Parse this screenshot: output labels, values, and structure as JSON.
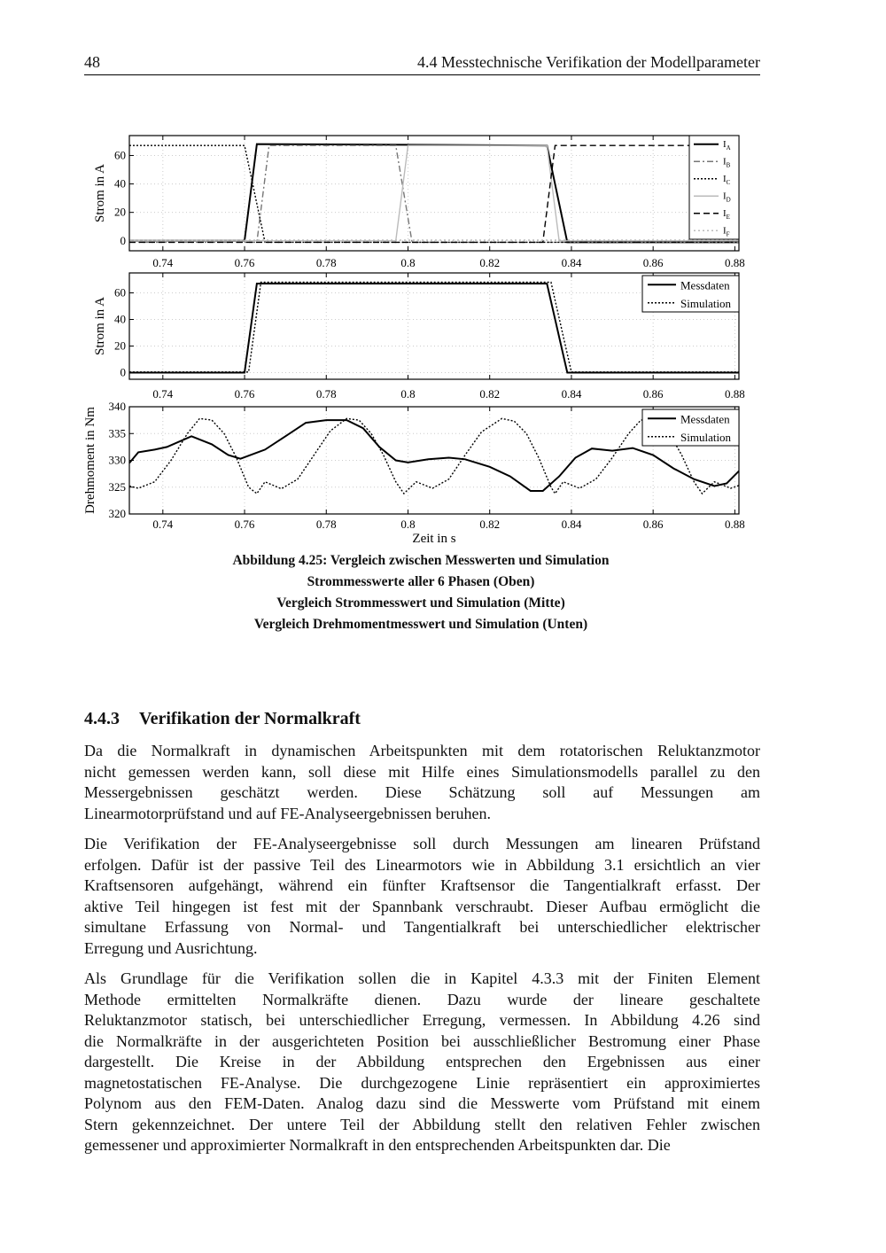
{
  "header": {
    "page_number": "48",
    "section_title": "4.4 Messtechnische Verifikation der Modellparameter"
  },
  "figure": {
    "caption": [
      "Abbildung 4.25: Vergleich zwischen Messwerten und Simulation",
      "Strommesswerte aller 6 Phasen (Oben)",
      "Vergleich Strommesswert und Simulation (Mitte)",
      "Vergleich Drehmomentmesswert und Simulation (Unten)"
    ]
  },
  "chart_data": [
    {
      "type": "line",
      "xlabel": "",
      "ylabel": "Strom in A",
      "xlim": [
        0.7318,
        0.881
      ],
      "ylim": [
        -7,
        74
      ],
      "xticks": [
        "0.74",
        "0.76",
        "0.78",
        "0.8",
        "0.82",
        "0.84",
        "0.86",
        "0.88"
      ],
      "xtick_values": [
        0.74,
        0.76,
        0.78,
        0.8,
        0.82,
        0.84,
        0.86,
        0.88
      ],
      "yticks": [
        0,
        20,
        40,
        60
      ],
      "grid": true,
      "legend": "top-right",
      "series": [
        {
          "name": "I",
          "sub": "A",
          "style": "solid",
          "color": "#000000",
          "points": [
            [
              0.7318,
              0
            ],
            [
              0.76,
              0
            ],
            [
              0.763,
              68
            ],
            [
              0.834,
              67
            ],
            [
              0.839,
              -1
            ],
            [
              0.881,
              -1
            ]
          ]
        },
        {
          "name": "I",
          "sub": "B",
          "style": "dashdot",
          "color": "#777777",
          "points": [
            [
              0.7318,
              -1
            ],
            [
              0.763,
              -1
            ],
            [
              0.766,
              67
            ],
            [
              0.797,
              67
            ],
            [
              0.801,
              -1
            ],
            [
              0.881,
              -1
            ]
          ]
        },
        {
          "name": "I",
          "sub": "C",
          "style": "dotted",
          "color": "#000000",
          "points": [
            [
              0.7318,
              67
            ],
            [
              0.76,
              67
            ],
            [
              0.765,
              -1
            ],
            [
              0.881,
              -1
            ]
          ]
        },
        {
          "name": "I",
          "sub": "D",
          "style": "solid-light",
          "color": "#bbbbbb",
          "points": [
            [
              0.7318,
              0
            ],
            [
              0.797,
              0
            ],
            [
              0.8,
              67
            ],
            [
              0.834,
              67
            ],
            [
              0.837,
              0
            ],
            [
              0.881,
              0
            ]
          ]
        },
        {
          "name": "I",
          "sub": "E",
          "style": "dashed",
          "color": "#000000",
          "points": [
            [
              0.7318,
              -1
            ],
            [
              0.833,
              -1
            ],
            [
              0.836,
              67
            ],
            [
              0.881,
              67
            ]
          ]
        },
        {
          "name": "I",
          "sub": "F",
          "style": "dotted-light",
          "color": "#bbbbbb",
          "points": [
            [
              0.7318,
              0.5
            ],
            [
              0.881,
              0.5
            ]
          ]
        }
      ]
    },
    {
      "type": "line",
      "xlabel": "",
      "ylabel": "Strom in A",
      "xlim": [
        0.7318,
        0.881
      ],
      "ylim": [
        -5,
        75
      ],
      "xticks": [
        "0.74",
        "0.76",
        "0.78",
        "0.8",
        "0.82",
        "0.84",
        "0.86",
        "0.88"
      ],
      "xtick_values": [
        0.74,
        0.76,
        0.78,
        0.8,
        0.82,
        0.84,
        0.86,
        0.88
      ],
      "yticks": [
        0,
        20,
        40,
        60
      ],
      "grid": true,
      "legend": "top-right",
      "series": [
        {
          "name": "Messdaten",
          "style": "solid",
          "color": "#000000",
          "points": [
            [
              0.7318,
              0
            ],
            [
              0.76,
              0
            ],
            [
              0.763,
              67
            ],
            [
              0.834,
              67
            ],
            [
              0.839,
              0
            ],
            [
              0.881,
              0
            ]
          ]
        },
        {
          "name": "Simulation",
          "style": "dotted",
          "color": "#000000",
          "points": [
            [
              0.7318,
              0.5
            ],
            [
              0.761,
              0.5
            ],
            [
              0.764,
              68
            ],
            [
              0.835,
              68
            ],
            [
              0.84,
              0.5
            ],
            [
              0.881,
              0.5
            ]
          ]
        }
      ]
    },
    {
      "type": "line",
      "xlabel": "Zeit in s",
      "ylabel": "Drehmoment in Nm",
      "xlim": [
        0.7318,
        0.881
      ],
      "ylim": [
        320,
        340
      ],
      "xticks": [
        "0.74",
        "0.76",
        "0.78",
        "0.8",
        "0.82",
        "0.84",
        "0.86",
        "0.88"
      ],
      "xtick_values": [
        0.74,
        0.76,
        0.78,
        0.8,
        0.82,
        0.84,
        0.86,
        0.88
      ],
      "yticks": [
        320,
        325,
        330,
        335,
        340
      ],
      "grid": true,
      "legend": "top-right",
      "series": [
        {
          "name": "Messdaten",
          "style": "solid",
          "color": "#000000",
          "points": [
            [
              0.7318,
              329.5
            ],
            [
              0.734,
              331.5
            ],
            [
              0.738,
              332
            ],
            [
              0.741,
              332.5
            ],
            [
              0.747,
              334.5
            ],
            [
              0.752,
              333
            ],
            [
              0.756,
              331
            ],
            [
              0.759,
              330.3
            ],
            [
              0.765,
              332
            ],
            [
              0.77,
              334.5
            ],
            [
              0.775,
              337
            ],
            [
              0.78,
              337.5
            ],
            [
              0.785,
              337.5
            ],
            [
              0.789,
              336
            ],
            [
              0.793,
              332.5
            ],
            [
              0.797,
              330
            ],
            [
              0.8,
              329.6
            ],
            [
              0.805,
              330.2
            ],
            [
              0.81,
              330.5
            ],
            [
              0.814,
              330.2
            ],
            [
              0.82,
              328.8
            ],
            [
              0.825,
              327
            ],
            [
              0.83,
              324.3
            ],
            [
              0.833,
              324.3
            ],
            [
              0.837,
              327
            ],
            [
              0.841,
              330.5
            ],
            [
              0.845,
              332.2
            ],
            [
              0.85,
              331.8
            ],
            [
              0.855,
              332.3
            ],
            [
              0.86,
              331
            ],
            [
              0.865,
              328.5
            ],
            [
              0.87,
              326.5
            ],
            [
              0.875,
              325.2
            ],
            [
              0.878,
              325.7
            ],
            [
              0.881,
              328
            ]
          ]
        },
        {
          "name": "Simulation",
          "style": "dotted",
          "color": "#000000",
          "points": [
            [
              0.7318,
              325.2
            ],
            [
              0.734,
              324.8
            ],
            [
              0.738,
              326
            ],
            [
              0.742,
              330
            ],
            [
              0.746,
              335
            ],
            [
              0.749,
              337.8
            ],
            [
              0.752,
              337.5
            ],
            [
              0.755,
              335
            ],
            [
              0.758,
              330.5
            ],
            [
              0.761,
              325
            ],
            [
              0.763,
              323.8
            ],
            [
              0.765,
              326
            ],
            [
              0.769,
              324.7
            ],
            [
              0.773,
              326.5
            ],
            [
              0.777,
              331
            ],
            [
              0.781,
              335.5
            ],
            [
              0.785,
              337.8
            ],
            [
              0.788,
              337.5
            ],
            [
              0.791,
              335
            ],
            [
              0.794,
              331
            ],
            [
              0.797,
              326
            ],
            [
              0.799,
              323.8
            ],
            [
              0.802,
              326
            ],
            [
              0.806,
              324.8
            ],
            [
              0.81,
              326.5
            ],
            [
              0.814,
              331
            ],
            [
              0.818,
              335.3
            ],
            [
              0.823,
              337.8
            ],
            [
              0.826,
              337.3
            ],
            [
              0.829,
              335
            ],
            [
              0.832,
              330.5
            ],
            [
              0.835,
              325
            ],
            [
              0.836,
              323.8
            ],
            [
              0.838,
              326
            ],
            [
              0.842,
              324.8
            ],
            [
              0.846,
              326.5
            ],
            [
              0.85,
              330.5
            ],
            [
              0.854,
              335
            ],
            [
              0.857,
              337.5
            ],
            [
              0.861,
              337.8
            ],
            [
              0.864,
              335
            ],
            [
              0.867,
              331
            ],
            [
              0.87,
              326
            ],
            [
              0.872,
              323.8
            ],
            [
              0.875,
              326
            ],
            [
              0.879,
              324.8
            ],
            [
              0.881,
              325.3
            ]
          ]
        }
      ]
    }
  ],
  "section": {
    "number": "4.4.3",
    "title": "Verifikation der Normalkraft"
  },
  "paragraphs": [
    [
      "Da die Normalkraft in dynamischen Arbeitspunkten mit dem rotatorischen Reluktanzmotor",
      "nicht gemessen werden kann, soll diese mit Hilfe eines Simulationsmodells parallel zu den",
      "Messergebnissen geschätzt werden. Diese Schätzung soll auf Messungen am",
      "Linearmotorprüfstand und auf FE-Analyseergebnissen beruhen."
    ],
    [
      "Die Verifikation der FE-Analyseergebnisse soll durch Messungen am linearen Prüfstand",
      "erfolgen. Dafür ist der passive Teil des Linearmotors wie in Abbildung 3.1 ersichtlich an vier",
      "Kraftsensoren aufgehängt, während ein fünfter Kraftsensor die Tangentialkraft erfasst. Der",
      "aktive Teil hingegen ist fest mit der Spannbank verschraubt. Dieser Aufbau ermöglicht die",
      "simultane Erfassung von Normal- und Tangentialkraft bei unterschiedlicher elektrischer",
      "Erregung und Ausrichtung."
    ],
    [
      "Als Grundlage für die Verifikation sollen die in Kapitel 4.3.3 mit der Finiten Element",
      "Methode ermittelten Normalkräfte dienen. Dazu wurde der lineare geschaltete",
      "Reluktanzmotor statisch, bei unterschiedlicher Erregung, vermessen. In Abbildung 4.26 sind",
      "die Normalkräfte in der ausgerichteten Position bei ausschließlicher Bestromung einer Phase",
      "dargestellt. Die Kreise in der Abbildung entsprechen den Ergebnissen aus einer",
      "magnetostatischen FE-Analyse. Die durchgezogene Linie repräsentiert ein approximiertes",
      "Polynom aus den FEM-Daten. Analog dazu sind die Messwerte vom Prüfstand mit einem",
      "Stern gekennzeichnet. Der untere Teil der Abbildung stellt den relativen Fehler zwischen",
      "gemessener und approximierter Normalkraft in den entsprechenden Arbeitspunkten dar. Die"
    ]
  ]
}
